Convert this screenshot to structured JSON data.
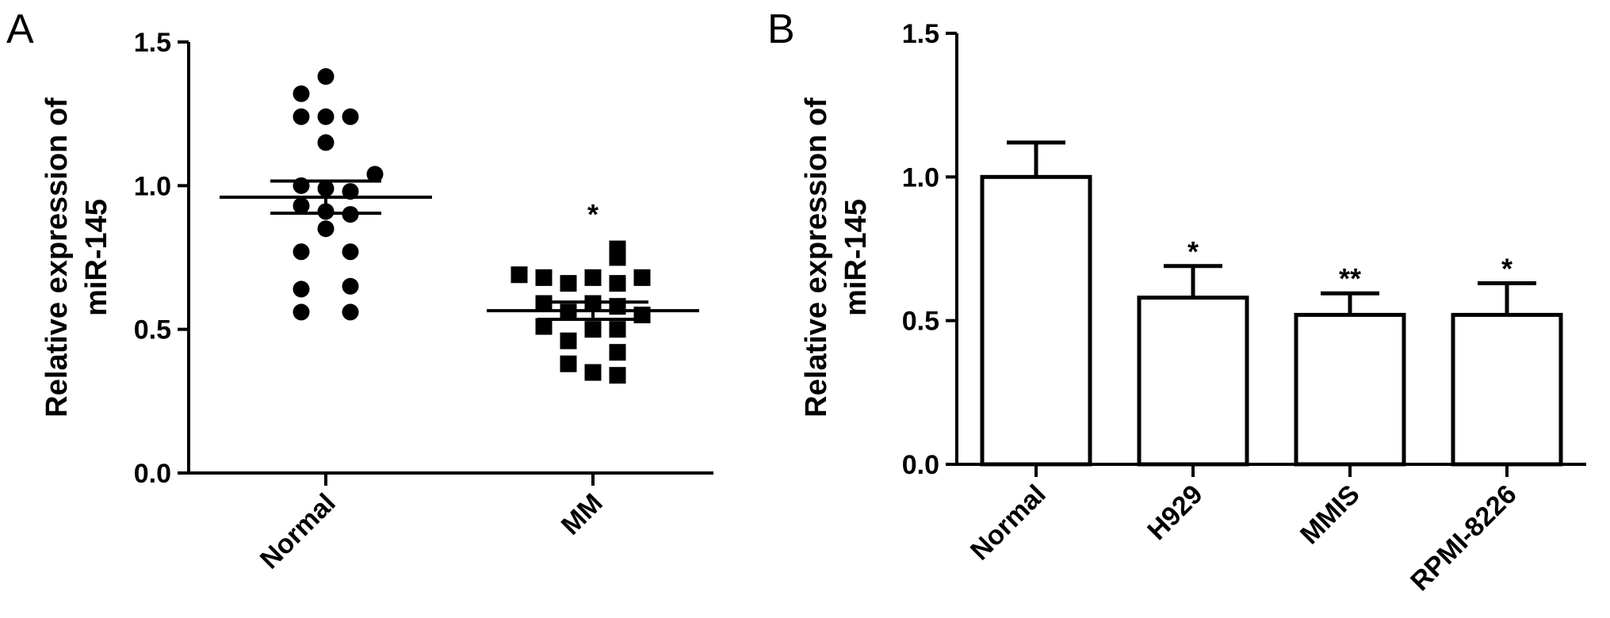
{
  "chart_data": [
    {
      "panel": "A",
      "type": "scatter",
      "ylabel_line1": "Relative expression of",
      "ylabel_line2": "miR-145",
      "ylim": [
        0,
        1.5
      ],
      "yticks": [
        "0.0",
        "0.5",
        "1.0",
        "1.5"
      ],
      "categories": [
        "Normal",
        "MM"
      ],
      "groups": [
        {
          "category": "Normal",
          "marker": "circle",
          "mean": 0.96,
          "sem": 0.056,
          "significance": "",
          "points": [
            {
              "v": 1.38,
              "j": 0
            },
            {
              "v": 1.32,
              "j": -1
            },
            {
              "v": 1.24,
              "j": -1
            },
            {
              "v": 1.24,
              "j": 0
            },
            {
              "v": 1.24,
              "j": 1
            },
            {
              "v": 1.15,
              "j": 0
            },
            {
              "v": 1.04,
              "j": 2
            },
            {
              "v": 1.0,
              "j": -1
            },
            {
              "v": 0.99,
              "j": 0
            },
            {
              "v": 0.98,
              "j": 1
            },
            {
              "v": 0.93,
              "j": -1
            },
            {
              "v": 0.91,
              "j": 0
            },
            {
              "v": 0.9,
              "j": 1
            },
            {
              "v": 0.85,
              "j": 0
            },
            {
              "v": 0.77,
              "j": -1
            },
            {
              "v": 0.77,
              "j": 1
            },
            {
              "v": 0.64,
              "j": -1
            },
            {
              "v": 0.65,
              "j": 1
            },
            {
              "v": 0.56,
              "j": -1
            },
            {
              "v": 0.56,
              "j": 1
            }
          ]
        },
        {
          "category": "MM",
          "marker": "square",
          "mean": 0.565,
          "sem": 0.03,
          "significance": "*",
          "points": [
            {
              "v": 0.78,
              "j": 1
            },
            {
              "v": 0.75,
              "j": 1
            },
            {
              "v": 0.69,
              "j": -3
            },
            {
              "v": 0.68,
              "j": -2
            },
            {
              "v": 0.68,
              "j": 0
            },
            {
              "v": 0.68,
              "j": 2
            },
            {
              "v": 0.66,
              "j": -1
            },
            {
              "v": 0.66,
              "j": 1
            },
            {
              "v": 0.59,
              "j": -2
            },
            {
              "v": 0.59,
              "j": 0
            },
            {
              "v": 0.58,
              "j": 1
            },
            {
              "v": 0.56,
              "j": -1
            },
            {
              "v": 0.55,
              "j": 2
            },
            {
              "v": 0.51,
              "j": -2
            },
            {
              "v": 0.5,
              "j": 0
            },
            {
              "v": 0.5,
              "j": 1
            },
            {
              "v": 0.46,
              "j": -1
            },
            {
              "v": 0.42,
              "j": 1
            },
            {
              "v": 0.38,
              "j": -1
            },
            {
              "v": 0.35,
              "j": 0
            },
            {
              "v": 0.34,
              "j": 1
            }
          ]
        }
      ]
    },
    {
      "panel": "B",
      "type": "bar",
      "ylabel_line1": "Relative expression of",
      "ylabel_line2": "miR-145",
      "ylim": [
        0,
        1.5
      ],
      "yticks": [
        "0.0",
        "0.5",
        "1.0",
        "1.5"
      ],
      "categories": [
        "Normal",
        "H929",
        "MMIS",
        "RPMI-8226"
      ],
      "values": [
        1.0,
        0.58,
        0.52,
        0.52
      ],
      "errors": [
        0.12,
        0.11,
        0.075,
        0.11
      ],
      "significance": [
        "",
        "*",
        "**",
        "*"
      ]
    }
  ]
}
